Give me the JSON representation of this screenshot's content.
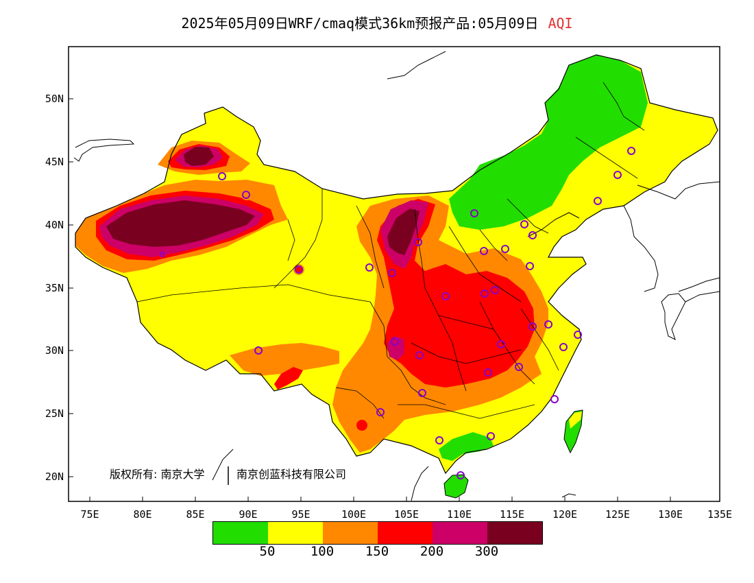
{
  "title": {
    "main": "2025年05月09日WRF/cmaq模式36km预报产品:05月09日",
    "variable": "AQI"
  },
  "map": {
    "lon_ticks": [
      "75E",
      "80E",
      "85E",
      "90E",
      "95E",
      "100E",
      "105E",
      "110E",
      "115E",
      "120E",
      "125E",
      "130E",
      "135E"
    ],
    "lat_ticks": [
      "50N",
      "45N",
      "40N",
      "35N",
      "30N",
      "25N",
      "20N"
    ],
    "copyright": "版权所有: 南京大学",
    "copyright2": "南京创蓝科技有限公司",
    "colors": {
      "good": "#22dd00",
      "moderate": "#ffff00",
      "sensitive": "#ff8800",
      "unhealthy": "#ff0000",
      "very_unhealthy": "#cc0066",
      "hazardous": "#7a0020",
      "station_marker": "#8800cc"
    }
  },
  "legend": {
    "colors": [
      "#22dd00",
      "#ffff00",
      "#ff8800",
      "#ff0000",
      "#cc0066",
      "#7a0020"
    ],
    "labels": [
      "50",
      "100",
      "150",
      "200",
      "300"
    ]
  }
}
